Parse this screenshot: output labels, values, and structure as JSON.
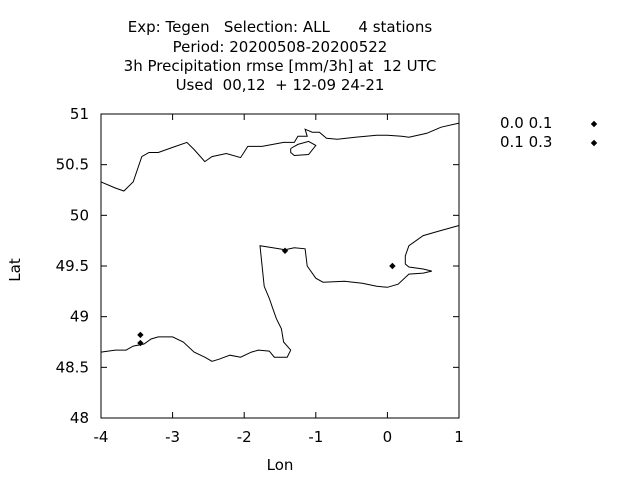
{
  "chart_data": {
    "type": "scatter",
    "title_lines": [
      "Exp: Tegen   Selection: ALL      4 stations",
      "Period: 20200508-20200522",
      "3h Precipitation rmse [mm/3h] at  12 UTC",
      "Used  00,12  + 12-09 24-21"
    ],
    "xlabel": "Lon",
    "ylabel": "Lat",
    "xlim": [
      -4,
      1
    ],
    "ylim": [
      48,
      51
    ],
    "xticks": [
      -4,
      -3,
      -2,
      -1,
      0,
      1
    ],
    "yticks": [
      48,
      48.5,
      49,
      49.5,
      50,
      50.5,
      51
    ],
    "grid": false,
    "legend_placement": "right",
    "series": [
      {
        "name": "0.0 0.1",
        "color": "#000000",
        "marker": "diamond",
        "points": [
          {
            "x": -1.43,
            "y": 49.65
          },
          {
            "x": 0.07,
            "y": 49.5
          }
        ]
      },
      {
        "name": "0.1 0.3",
        "color": "#000000",
        "marker": "diamond",
        "points": [
          {
            "x": -3.45,
            "y": 48.82
          },
          {
            "x": -3.45,
            "y": 48.74
          }
        ]
      }
    ],
    "coastlines": [
      [
        [
          -4.0,
          50.33
        ],
        [
          -3.8,
          50.27
        ],
        [
          -3.68,
          50.24
        ],
        [
          -3.55,
          50.33
        ],
        [
          -3.43,
          50.58
        ],
        [
          -3.33,
          50.62
        ],
        [
          -3.2,
          50.62
        ],
        [
          -3.0,
          50.67
        ],
        [
          -2.8,
          50.72
        ],
        [
          -2.7,
          50.65
        ],
        [
          -2.55,
          50.53
        ],
        [
          -2.45,
          50.58
        ],
        [
          -2.25,
          50.61
        ],
        [
          -2.05,
          50.57
        ],
        [
          -1.95,
          50.68
        ],
        [
          -1.75,
          50.68
        ],
        [
          -1.45,
          50.72
        ],
        [
          -1.3,
          50.72
        ],
        [
          -1.25,
          50.78
        ],
        [
          -1.12,
          50.78
        ],
        [
          -1.15,
          50.85
        ],
        [
          -1.05,
          50.82
        ],
        [
          -0.95,
          50.82
        ],
        [
          -0.85,
          50.76
        ],
        [
          -0.7,
          50.75
        ],
        [
          -0.45,
          50.77
        ],
        [
          -0.15,
          50.79
        ],
        [
          0.0,
          50.79
        ],
        [
          0.2,
          50.78
        ],
        [
          0.3,
          50.77
        ],
        [
          0.55,
          50.81
        ],
        [
          0.75,
          50.87
        ],
        [
          1.0,
          50.91
        ]
      ],
      [
        [
          -1.35,
          50.66
        ],
        [
          -1.25,
          50.7
        ],
        [
          -1.1,
          50.73
        ],
        [
          -1.0,
          50.69
        ],
        [
          -1.1,
          50.6
        ],
        [
          -1.3,
          50.59
        ],
        [
          -1.35,
          50.62
        ],
        [
          -1.35,
          50.66
        ]
      ],
      [
        [
          -4.0,
          48.65
        ],
        [
          -3.8,
          48.67
        ],
        [
          -3.65,
          48.67
        ],
        [
          -3.55,
          48.71
        ],
        [
          -3.4,
          48.73
        ],
        [
          -3.3,
          48.78
        ],
        [
          -3.2,
          48.8
        ],
        [
          -3.0,
          48.8
        ],
        [
          -2.85,
          48.75
        ],
        [
          -2.7,
          48.65
        ],
        [
          -2.55,
          48.6
        ],
        [
          -2.45,
          48.56
        ],
        [
          -2.35,
          48.58
        ],
        [
          -2.2,
          48.62
        ],
        [
          -2.05,
          48.6
        ],
        [
          -1.9,
          48.65
        ],
        [
          -1.8,
          48.67
        ],
        [
          -1.65,
          48.66
        ],
        [
          -1.58,
          48.6
        ],
        [
          -1.4,
          48.6
        ],
        [
          -1.35,
          48.67
        ],
        [
          -1.45,
          48.75
        ],
        [
          -1.48,
          48.88
        ],
        [
          -1.55,
          48.98
        ],
        [
          -1.6,
          49.08
        ],
        [
          -1.65,
          49.18
        ],
        [
          -1.72,
          49.3
        ],
        [
          -1.75,
          49.5
        ],
        [
          -1.78,
          49.7
        ],
        [
          -1.6,
          49.68
        ],
        [
          -1.43,
          49.66
        ],
        [
          -1.3,
          49.68
        ],
        [
          -1.15,
          49.67
        ],
        [
          -1.12,
          49.5
        ],
        [
          -1.0,
          49.38
        ],
        [
          -0.9,
          49.34
        ],
        [
          -0.6,
          49.35
        ],
        [
          -0.35,
          49.33
        ],
        [
          -0.15,
          49.3
        ],
        [
          0.0,
          49.29
        ],
        [
          0.15,
          49.32
        ],
        [
          0.3,
          49.42
        ],
        [
          0.5,
          49.43
        ],
        [
          0.62,
          49.45
        ],
        [
          0.5,
          49.47
        ],
        [
          0.3,
          49.49
        ],
        [
          0.25,
          49.52
        ],
        [
          0.25,
          49.6
        ],
        [
          0.3,
          49.7
        ],
        [
          0.5,
          49.8
        ],
        [
          0.7,
          49.84
        ],
        [
          0.9,
          49.88
        ],
        [
          1.0,
          49.9
        ]
      ]
    ]
  }
}
